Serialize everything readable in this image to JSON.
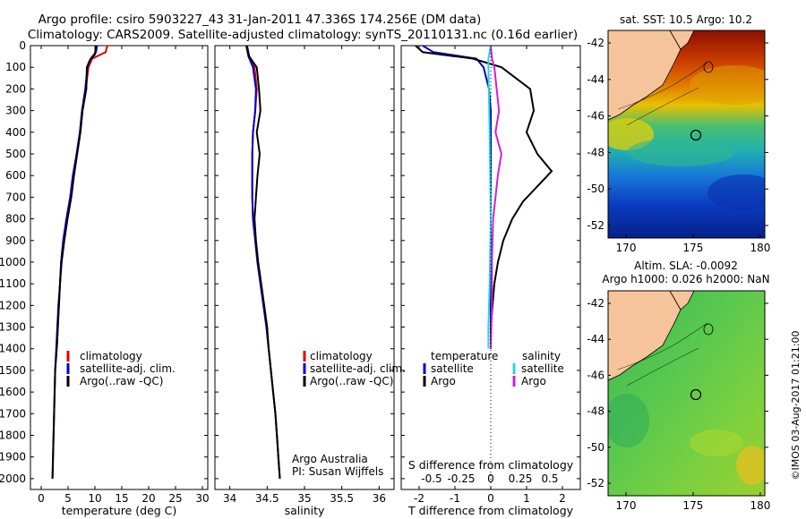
{
  "header": {
    "line1": "Argo profile: csiro 5903227_43 31-Jan-2011 47.336S 174.256E (DM data)",
    "line2": "Climatology: CARS2009. Satellite-adjusted climatology: synTS_20110131.nc (0.16d earlier)"
  },
  "colors": {
    "climatology": "#e00000",
    "satellite": "#0000d0",
    "argo": "#000000",
    "argo_salinity": "#d020d0",
    "satellite_salinity": "#20d8e0",
    "land": "#f5c49a"
  },
  "panels": {
    "temperature": {
      "xlabel": "temperature (deg C)"
    },
    "salinity": {
      "xlabel": "salinity",
      "credit1": "Argo Australia",
      "credit2": "PI: Susan Wijffels"
    },
    "difference": {
      "xlabel": "T difference from climatology",
      "top_label": "S difference from climatology",
      "legend_temperature": "temperature",
      "legend_salinity": "salinity",
      "legend_satellite_t": "satellite",
      "legend_argo_t": "Argo",
      "legend_satellite_s": "satellite",
      "legend_argo_s": "Argo"
    },
    "legend": {
      "climatology": "climatology",
      "satellite": "satellite-adj. clim.",
      "argo": "Argo(..raw -QC)"
    }
  },
  "maps": {
    "sst_title": "sat. SST: 10.5  Argo: 10.2",
    "sla_title1": "Altim. SLA: -0.0092",
    "sla_title2": "Argo h1000: 0.026  h2000: NaN",
    "y_ticks": [
      "-42",
      "-44",
      "-46",
      "-48",
      "-50",
      "-52"
    ],
    "x_ticks": [
      "170",
      "175",
      "180"
    ]
  },
  "footer": {
    "stamp": "©IMOS 03-Aug-2017 01:21:00"
  },
  "chart_data": [
    {
      "type": "line",
      "title": "",
      "xlabel": "temperature (deg C)",
      "ylabel": "",
      "xlim": [
        -2,
        31
      ],
      "ylim": [
        2050,
        0
      ],
      "x_ticks": [
        "0",
        "5",
        "10",
        "15",
        "20",
        "25",
        "30"
      ],
      "x_tick_values": [
        0,
        5,
        10,
        15,
        20,
        25,
        30
      ],
      "y_ticks": [
        "0",
        "100",
        "200",
        "300",
        "400",
        "500",
        "600",
        "700",
        "800",
        "900",
        "1000",
        "1100",
        "1200",
        "1300",
        "1400",
        "1500",
        "1600",
        "1700",
        "1800",
        "1900",
        "2000"
      ],
      "y_tick_values": [
        0,
        100,
        200,
        300,
        400,
        500,
        600,
        700,
        800,
        900,
        1000,
        1100,
        1200,
        1300,
        1400,
        1500,
        1600,
        1700,
        1800,
        1900,
        2000
      ],
      "series": [
        {
          "name": "climatology",
          "points": [
            [
              12.3,
              0
            ],
            [
              12.0,
              30
            ],
            [
              9.5,
              60
            ],
            [
              8.8,
              100
            ],
            [
              8.3,
              200
            ],
            [
              7.6,
              300
            ],
            [
              7.2,
              400
            ],
            [
              6.6,
              500
            ],
            [
              5.9,
              600
            ],
            [
              5.4,
              700
            ],
            [
              4.7,
              800
            ],
            [
              4.1,
              900
            ],
            [
              3.7,
              1000
            ],
            [
              3.5,
              1100
            ],
            [
              3.3,
              1200
            ],
            [
              3.1,
              1300
            ],
            [
              2.9,
              1400
            ]
          ]
        },
        {
          "name": "satellite-adj. clim.",
          "points": [
            [
              10.4,
              0
            ],
            [
              10.2,
              30
            ],
            [
              9.2,
              60
            ],
            [
              8.6,
              100
            ],
            [
              8.2,
              200
            ],
            [
              7.6,
              300
            ],
            [
              7.2,
              400
            ],
            [
              6.6,
              500
            ],
            [
              5.9,
              600
            ],
            [
              5.4,
              700
            ],
            [
              4.7,
              800
            ],
            [
              4.1,
              900
            ],
            [
              3.7,
              1000
            ],
            [
              3.5,
              1100
            ],
            [
              3.2,
              1200
            ],
            [
              3.0,
              1300
            ],
            [
              2.8,
              1400
            ],
            [
              2.6,
              1500
            ],
            [
              2.5,
              1600
            ],
            [
              2.4,
              1700
            ],
            [
              2.3,
              1800
            ],
            [
              2.2,
              1900
            ],
            [
              2.1,
              2000
            ]
          ]
        },
        {
          "name": "Argo(..raw -QC)",
          "points": [
            [
              10.2,
              0
            ],
            [
              10.0,
              40
            ],
            [
              9.0,
              70
            ],
            [
              8.5,
              100
            ],
            [
              8.4,
              200
            ],
            [
              7.7,
              300
            ],
            [
              7.3,
              400
            ],
            [
              6.7,
              500
            ],
            [
              6.1,
              600
            ],
            [
              5.6,
              700
            ],
            [
              4.9,
              800
            ],
            [
              4.3,
              900
            ],
            [
              3.8,
              1000
            ],
            [
              3.5,
              1100
            ],
            [
              3.3,
              1200
            ],
            [
              3.1,
              1300
            ],
            [
              2.9,
              1400
            ],
            [
              2.6,
              1500
            ],
            [
              2.5,
              1600
            ],
            [
              2.4,
              1700
            ],
            [
              2.3,
              1800
            ],
            [
              2.2,
              1900
            ],
            [
              2.1,
              2000
            ]
          ]
        }
      ]
    },
    {
      "type": "line",
      "title": "",
      "xlabel": "salinity",
      "ylabel": "",
      "xlim": [
        33.8,
        36.2
      ],
      "ylim": [
        2050,
        0
      ],
      "x_ticks": [
        "34",
        "34.5",
        "35",
        "35.5",
        "36"
      ],
      "x_tick_values": [
        34,
        34.5,
        35,
        35.5,
        36
      ],
      "series": [
        {
          "name": "climatology",
          "points": [
            [
              34.22,
              0
            ],
            [
              34.25,
              50
            ],
            [
              34.33,
              100
            ],
            [
              34.36,
              200
            ],
            [
              34.34,
              300
            ],
            [
              34.31,
              400
            ],
            [
              34.3,
              500
            ],
            [
              34.3,
              600
            ],
            [
              34.3,
              700
            ],
            [
              34.31,
              800
            ],
            [
              34.34,
              900
            ],
            [
              34.37,
              1000
            ],
            [
              34.41,
              1100
            ],
            [
              34.45,
              1200
            ],
            [
              34.49,
              1300
            ],
            [
              34.52,
              1400
            ]
          ]
        },
        {
          "name": "satellite-adj. clim.",
          "points": [
            [
              34.22,
              0
            ],
            [
              34.25,
              50
            ],
            [
              34.31,
              100
            ],
            [
              34.35,
              200
            ],
            [
              34.34,
              300
            ],
            [
              34.31,
              400
            ],
            [
              34.3,
              500
            ],
            [
              34.3,
              600
            ],
            [
              34.3,
              700
            ],
            [
              34.31,
              800
            ],
            [
              34.34,
              900
            ],
            [
              34.37,
              1000
            ],
            [
              34.41,
              1100
            ],
            [
              34.45,
              1200
            ],
            [
              34.49,
              1300
            ],
            [
              34.52,
              1400
            ],
            [
              34.55,
              1500
            ],
            [
              34.58,
              1600
            ],
            [
              34.61,
              1700
            ],
            [
              34.63,
              1800
            ],
            [
              34.65,
              1900
            ],
            [
              34.67,
              2000
            ]
          ]
        },
        {
          "name": "Argo(..raw -QC)",
          "points": [
            [
              34.23,
              0
            ],
            [
              34.26,
              50
            ],
            [
              34.36,
              100
            ],
            [
              34.39,
              200
            ],
            [
              34.41,
              300
            ],
            [
              34.36,
              400
            ],
            [
              34.4,
              500
            ],
            [
              34.37,
              600
            ],
            [
              34.35,
              700
            ],
            [
              34.33,
              800
            ],
            [
              34.35,
              900
            ],
            [
              34.38,
              1000
            ],
            [
              34.42,
              1100
            ],
            [
              34.46,
              1200
            ],
            [
              34.5,
              1300
            ],
            [
              34.52,
              1400
            ],
            [
              34.55,
              1500
            ],
            [
              34.58,
              1600
            ],
            [
              34.61,
              1700
            ],
            [
              34.63,
              1800
            ],
            [
              34.65,
              1900
            ],
            [
              34.67,
              2000
            ]
          ]
        }
      ]
    },
    {
      "type": "line",
      "title": "",
      "xlabel": "T difference from climatology",
      "ylabel": "",
      "xlim": [
        -2.5,
        2.5
      ],
      "ylim": [
        2050,
        0
      ],
      "x_ticks": [
        "-2",
        "-1",
        "0",
        "1",
        "2"
      ],
      "x_tick_values": [
        -2,
        -1,
        0,
        1,
        2
      ],
      "top_axis_label": "S difference from climatology",
      "top_ticks": [
        "-0.5",
        "-0.25",
        "0",
        "0.25",
        "0.5"
      ],
      "top_tick_values": [
        -0.5,
        -0.25,
        0,
        0.25,
        0.5
      ],
      "series": [
        {
          "name": "temperature satellite",
          "points": [
            [
              -1.9,
              0
            ],
            [
              -1.6,
              30
            ],
            [
              -0.4,
              60
            ],
            [
              -0.2,
              100
            ],
            [
              -0.05,
              200
            ],
            [
              0,
              300
            ],
            [
              0,
              500
            ],
            [
              0,
              800
            ],
            [
              0,
              1100
            ],
            [
              0,
              1400
            ]
          ]
        },
        {
          "name": "temperature Argo",
          "points": [
            [
              -2.1,
              0
            ],
            [
              -1.9,
              30
            ],
            [
              -0.5,
              60
            ],
            [
              0.3,
              100
            ],
            [
              1.1,
              200
            ],
            [
              1.2,
              300
            ],
            [
              1.0,
              400
            ],
            [
              1.3,
              500
            ],
            [
              1.7,
              580
            ],
            [
              1.3,
              650
            ],
            [
              0.9,
              720
            ],
            [
              0.6,
              800
            ],
            [
              0.35,
              900
            ],
            [
              0.2,
              1000
            ],
            [
              0.1,
              1100
            ],
            [
              0.05,
              1200
            ],
            [
              0,
              1300
            ],
            [
              0,
              1400
            ]
          ]
        },
        {
          "name": "salinity satellite",
          "points": [
            [
              0,
              0
            ],
            [
              -0.02,
              60
            ],
            [
              -0.02,
              100
            ],
            [
              -0.01,
              400
            ],
            [
              0,
              800
            ],
            [
              -0.01,
              1100
            ],
            [
              -0.02,
              1300
            ],
            [
              -0.02,
              1400
            ]
          ]
        },
        {
          "name": "salinity Argo",
          "points": [
            [
              0,
              0
            ],
            [
              0.01,
              60
            ],
            [
              0.03,
              100
            ],
            [
              0.05,
              200
            ],
            [
              0.07,
              300
            ],
            [
              0.04,
              400
            ],
            [
              0.09,
              500
            ],
            [
              0.06,
              600
            ],
            [
              0.04,
              700
            ],
            [
              0.02,
              800
            ],
            [
              0.01,
              1000
            ],
            [
              0.01,
              1200
            ],
            [
              0,
              1400
            ]
          ]
        }
      ]
    }
  ]
}
